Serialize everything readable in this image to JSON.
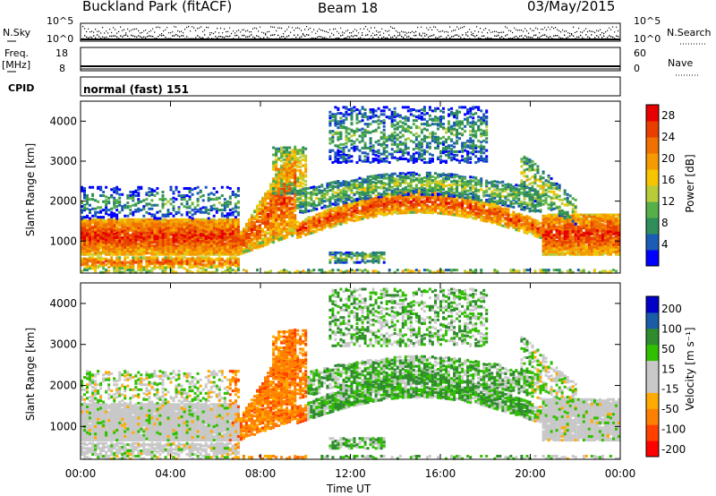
{
  "header": {
    "station": "Buckland Park (fitACF)",
    "beam": "Beam 18",
    "date": "03/May/2015"
  },
  "strip": {
    "nsky_label": "N.Sky",
    "nsky_ticks": [
      "10^5",
      "10^0"
    ],
    "nsearch_label": "N.Search",
    "nsearch_ticks": [
      "10^5",
      "10^0"
    ],
    "freq_label": "Freq.",
    "freq_unit": "[MHz]",
    "freq_ticks": [
      "18",
      "8"
    ],
    "nave_label": "Nave",
    "nave_ticks": [
      "60",
      "0"
    ],
    "cpid_label": "CPID",
    "cpid_value": "normal (fast) 151"
  },
  "colors": {
    "power_scale": [
      "#0000ff",
      "#1b5cb5",
      "#2f8e5a",
      "#56b04a",
      "#b8cc3a",
      "#f6c500",
      "#f59a00",
      "#f07000",
      "#e93e00",
      "#e60000"
    ],
    "velocity_scale": [
      "#ff0000",
      "#ff4000",
      "#ff8000",
      "#ffaa00",
      "#c8c8c8",
      "#c8c8c8",
      "#30c000",
      "#2e8b2e",
      "#1a5ca8",
      "#0000c8"
    ],
    "ground_scatter": "#c8c8c8"
  },
  "chart_data": [
    {
      "type": "heatmap",
      "name": "power",
      "ylabel": "Slant Range [km]",
      "ylim": [
        200,
        4500
      ],
      "yticks": [
        "1000",
        "2000",
        "3000",
        "4000"
      ],
      "xlim": [
        "00:00",
        "24:00"
      ],
      "colorbar": {
        "label": "Power [dB]",
        "ticks": [
          "4",
          "8",
          "12",
          "16",
          "20",
          "24",
          "28"
        ],
        "range": [
          0,
          30
        ]
      }
    },
    {
      "type": "heatmap",
      "name": "velocity",
      "ylabel": "Slant Range [km]",
      "ylim": [
        200,
        4500
      ],
      "yticks": [
        "1000",
        "2000",
        "3000",
        "4000"
      ],
      "xlim": [
        "00:00",
        "24:00"
      ],
      "xlabel": "Time UT",
      "xticks": [
        "00:00",
        "04:00",
        "08:00",
        "12:00",
        "16:00",
        "20:00",
        "00:00"
      ],
      "colorbar": {
        "label": "Velocity [m s⁻¹]",
        "ticks": [
          "200",
          "100",
          "50",
          "15",
          "-15",
          "-50",
          "-100",
          "-200"
        ],
        "range": [
          -250,
          250
        ]
      }
    }
  ]
}
